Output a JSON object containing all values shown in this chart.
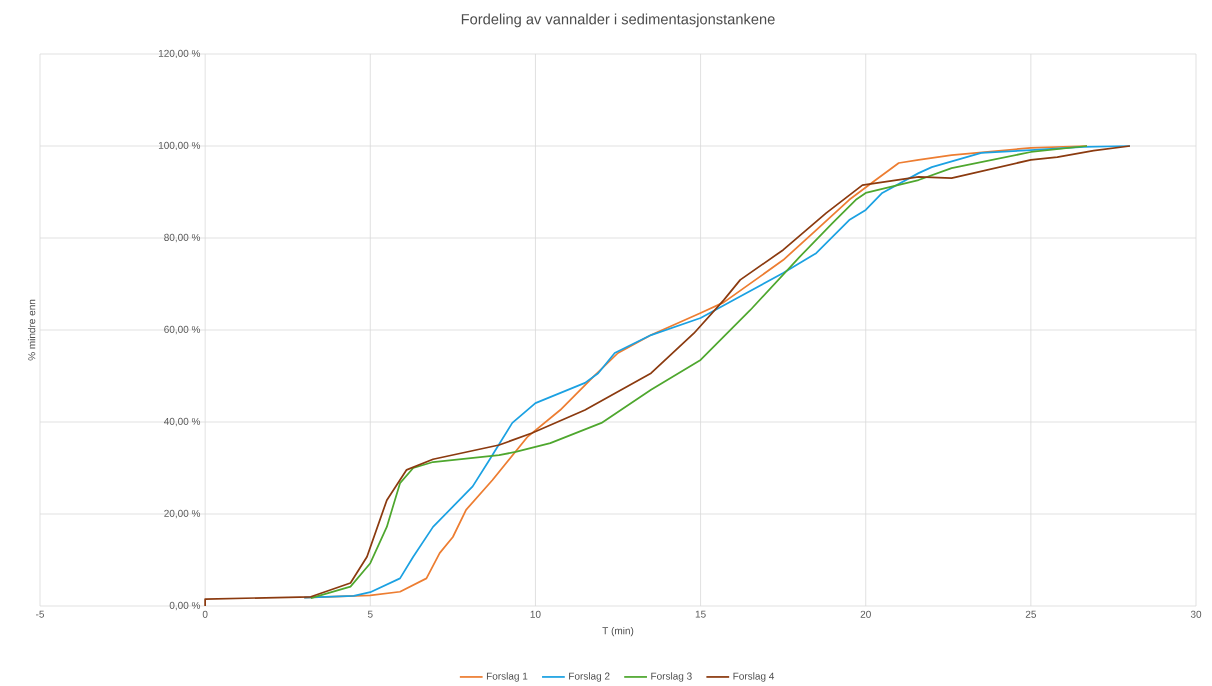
{
  "chart_data": {
    "type": "line",
    "title": "Fordeling  av vannalder i sedimentasjonstankene",
    "xlabel": "T (min)",
    "ylabel": "% mindre enn",
    "xlim": [
      -5,
      30
    ],
    "xticks": [
      -5,
      0,
      5,
      10,
      15,
      20,
      25,
      30
    ],
    "ylim": [
      0,
      120
    ],
    "yticks": [
      {
        "value": 0,
        "label": "0,00 %"
      },
      {
        "value": 20,
        "label": "20,00 %"
      },
      {
        "value": 40,
        "label": "40,00 %"
      },
      {
        "value": 60,
        "label": "60,00 %"
      },
      {
        "value": 80,
        "label": "80,00 %"
      },
      {
        "value": 100,
        "label": "100,00 %"
      },
      {
        "value": 120,
        "label": "120,00 %"
      }
    ],
    "grid": true,
    "legend": "bottom",
    "marker": "none",
    "line_style": "solid",
    "series": [
      {
        "name": "Forslag 1",
        "color": "#ed7d31",
        "x": [
          3,
          5,
          5.9,
          6.7,
          7.1,
          7.5,
          7.9,
          8.7,
          9.75,
          10.75,
          11.75,
          12.5,
          13.5,
          15,
          15.7,
          17.5,
          18.5,
          19.5,
          20.3,
          21,
          21.6,
          22.6,
          25,
          26.7
        ],
        "values": [
          1.8,
          2.3,
          3.1,
          6,
          11.5,
          15,
          20.9,
          27.4,
          36.7,
          42.6,
          49.8,
          55,
          58.9,
          63.7,
          66,
          75.2,
          81.7,
          88.3,
          92.6,
          96.3,
          97,
          98,
          99.6,
          100
        ]
      },
      {
        "name": "Forslag 2",
        "color": "#1ba1e2",
        "x": [
          3,
          4.5,
          5,
          5.9,
          6.3,
          6.9,
          7.5,
          8.1,
          8.6,
          9.3,
          10,
          11.5,
          11.9,
          12.4,
          13.5,
          15,
          16,
          17.5,
          18.5,
          19.5,
          20,
          20.5,
          21.6,
          22,
          23.5,
          25,
          26.6,
          28
        ],
        "values": [
          1.8,
          2.2,
          3,
          6,
          10.7,
          17.2,
          21.6,
          26,
          31.7,
          39.8,
          44.1,
          48.5,
          50.6,
          55,
          58.9,
          62.6,
          66.5,
          72.4,
          76.7,
          83.9,
          86.1,
          89.8,
          94.1,
          95.4,
          98.5,
          99.1,
          99.8,
          100
        ]
      },
      {
        "name": "Forslag 3",
        "color": "#4ea72e",
        "x": [
          3.2,
          4.4,
          5,
          5.5,
          5.9,
          6.3,
          6.9,
          8.9,
          9.4,
          10.45,
          12,
          13.5,
          15,
          16.5,
          18,
          19,
          19.7,
          20,
          21.6,
          22.6,
          25,
          26.7
        ],
        "values": [
          1.7,
          4.2,
          9.3,
          17.2,
          26.7,
          30,
          31.3,
          32.8,
          33.5,
          35.4,
          39.8,
          47,
          53.5,
          64.3,
          75.9,
          83.3,
          88.3,
          89.8,
          92.6,
          95.2,
          98.7,
          100
        ]
      },
      {
        "name": "Forslag 4",
        "color": "#8b3a0f",
        "x": [
          0,
          0,
          3.2,
          4.4,
          4.9,
          5.5,
          6.1,
          6.9,
          8.9,
          9.9,
          11.5,
          13.5,
          14.8,
          15.7,
          16.2,
          17.5,
          18.8,
          19.9,
          21.6,
          22.6,
          25,
          25.8,
          26.9,
          28
        ],
        "values": [
          0,
          1.5,
          2,
          5,
          10.7,
          23,
          29.6,
          31.9,
          35,
          37.6,
          42.6,
          50.6,
          59.3,
          66.5,
          70.9,
          77.4,
          85.4,
          91.5,
          93.3,
          93,
          97,
          97.6,
          99,
          100
        ]
      }
    ]
  }
}
